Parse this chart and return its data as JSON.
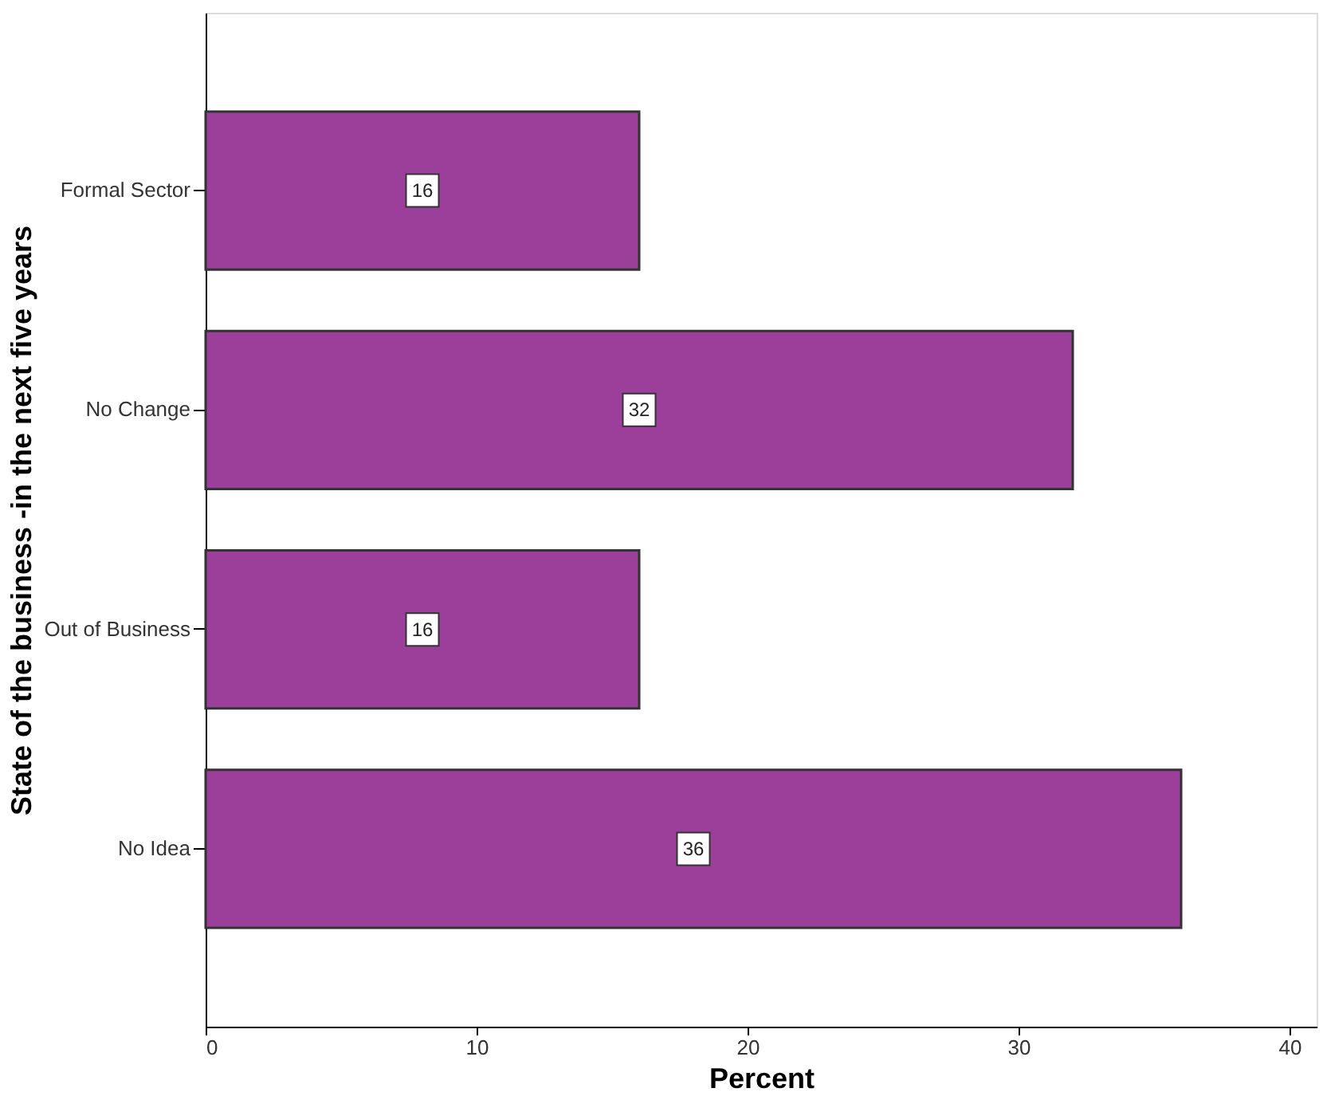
{
  "chart_data": {
    "type": "bar",
    "orientation": "horizontal",
    "categories": [
      "Formal Sector",
      "No Change",
      "Out of Business",
      "No Idea"
    ],
    "values": [
      16,
      32,
      16,
      36
    ],
    "color": "#9b3f9b",
    "data_labels": true,
    "xlim": [
      0,
      41
    ],
    "xticks": [
      0,
      10,
      20,
      30,
      40
    ],
    "grid": false,
    "xlabel": "Percent",
    "ylabel": "State of the business -in the next five years"
  }
}
